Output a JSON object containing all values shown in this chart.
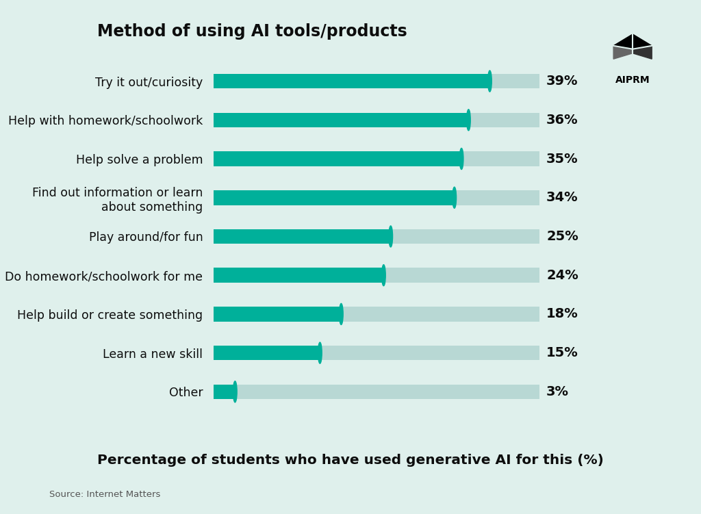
{
  "title": "Method of using AI tools/products",
  "xlabel": "Percentage of students who have used generative AI for this (%)",
  "source": "Source: Internet Matters",
  "categories": [
    "Try it out/curiosity",
    "Help with homework/schoolwork",
    "Help solve a problem",
    "Find out information or learn\nabout something",
    "Play around/for fun",
    "Do homework/schoolwork for me",
    "Help build or create something",
    "Learn a new skill",
    "Other"
  ],
  "values": [
    39,
    36,
    35,
    34,
    25,
    24,
    18,
    15,
    3
  ],
  "bar_color": "#00B09A",
  "bg_bar_color": "#B8D8D4",
  "background_color": "#DFF0EC",
  "text_color": "#0d0d0d",
  "title_fontsize": 17,
  "label_fontsize": 12.5,
  "pct_fontsize": 14,
  "xlabel_fontsize": 14.5
}
